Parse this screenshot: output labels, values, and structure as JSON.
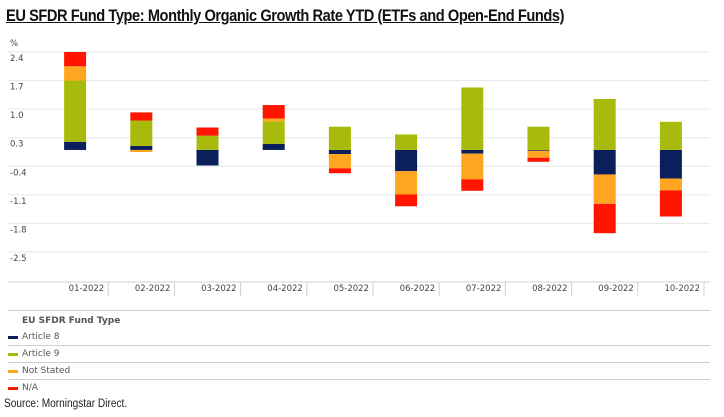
{
  "title": "EU SFDR Fund Type: Monthly Organic Growth Rate YTD (ETFs and Open-End Funds)",
  "source": "Source: Morningstar Direct.",
  "legend": {
    "title": "EU SFDR Fund Type",
    "items": [
      {
        "label": "Article 8",
        "color": "#0a1f5c"
      },
      {
        "label": "Article 9",
        "color": "#a8bb0a"
      },
      {
        "label": "Not Stated",
        "color": "#ffa521"
      },
      {
        "label": "N/A",
        "color": "#ff1500"
      }
    ]
  },
  "chart_data": {
    "type": "bar",
    "stacked": true,
    "title": "EU SFDR Fund Type: Monthly Organic Growth Rate YTD (ETFs and Open-End Funds)",
    "ylabel": "%",
    "xlabel": "",
    "ylim": [
      -2.5,
      2.4
    ],
    "yticks": [
      2.4,
      1.7,
      1.0,
      0.3,
      -0.4,
      -1.1,
      -1.8,
      -2.5
    ],
    "ytick_labels": [
      "2.4",
      "1.7",
      "1.0",
      "0.3",
      "-0.4",
      "-1.1",
      "-1.8",
      "-2.5"
    ],
    "grid": true,
    "legend_position": "bottom",
    "categories": [
      "01-2022",
      "02-2022",
      "03-2022",
      "04-2022",
      "05-2022",
      "06-2022",
      "07-2022",
      "08-2022",
      "09-2022",
      "10-2022"
    ],
    "series": [
      {
        "name": "Article 8",
        "color": "#0a1f5c",
        "values": [
          0.2,
          0.1,
          -0.38,
          0.15,
          -0.1,
          -0.52,
          -0.09,
          -0.02,
          -0.6,
          -0.7
        ]
      },
      {
        "name": "Article 9",
        "color": "#a8bb0a",
        "values": [
          1.5,
          0.62,
          0.35,
          0.55,
          0.57,
          0.38,
          1.53,
          0.57,
          1.25,
          0.69
        ]
      },
      {
        "name": "Not Stated",
        "color": "#ffa521",
        "values": [
          0.35,
          -0.05,
          0.0,
          0.07,
          -0.35,
          -0.57,
          -0.63,
          -0.17,
          -0.72,
          -0.29
        ]
      },
      {
        "name": "N/A",
        "color": "#ff1500",
        "values": [
          0.35,
          0.2,
          0.2,
          0.33,
          -0.12,
          -0.29,
          -0.28,
          -0.1,
          -0.72,
          -0.64
        ]
      }
    ]
  }
}
